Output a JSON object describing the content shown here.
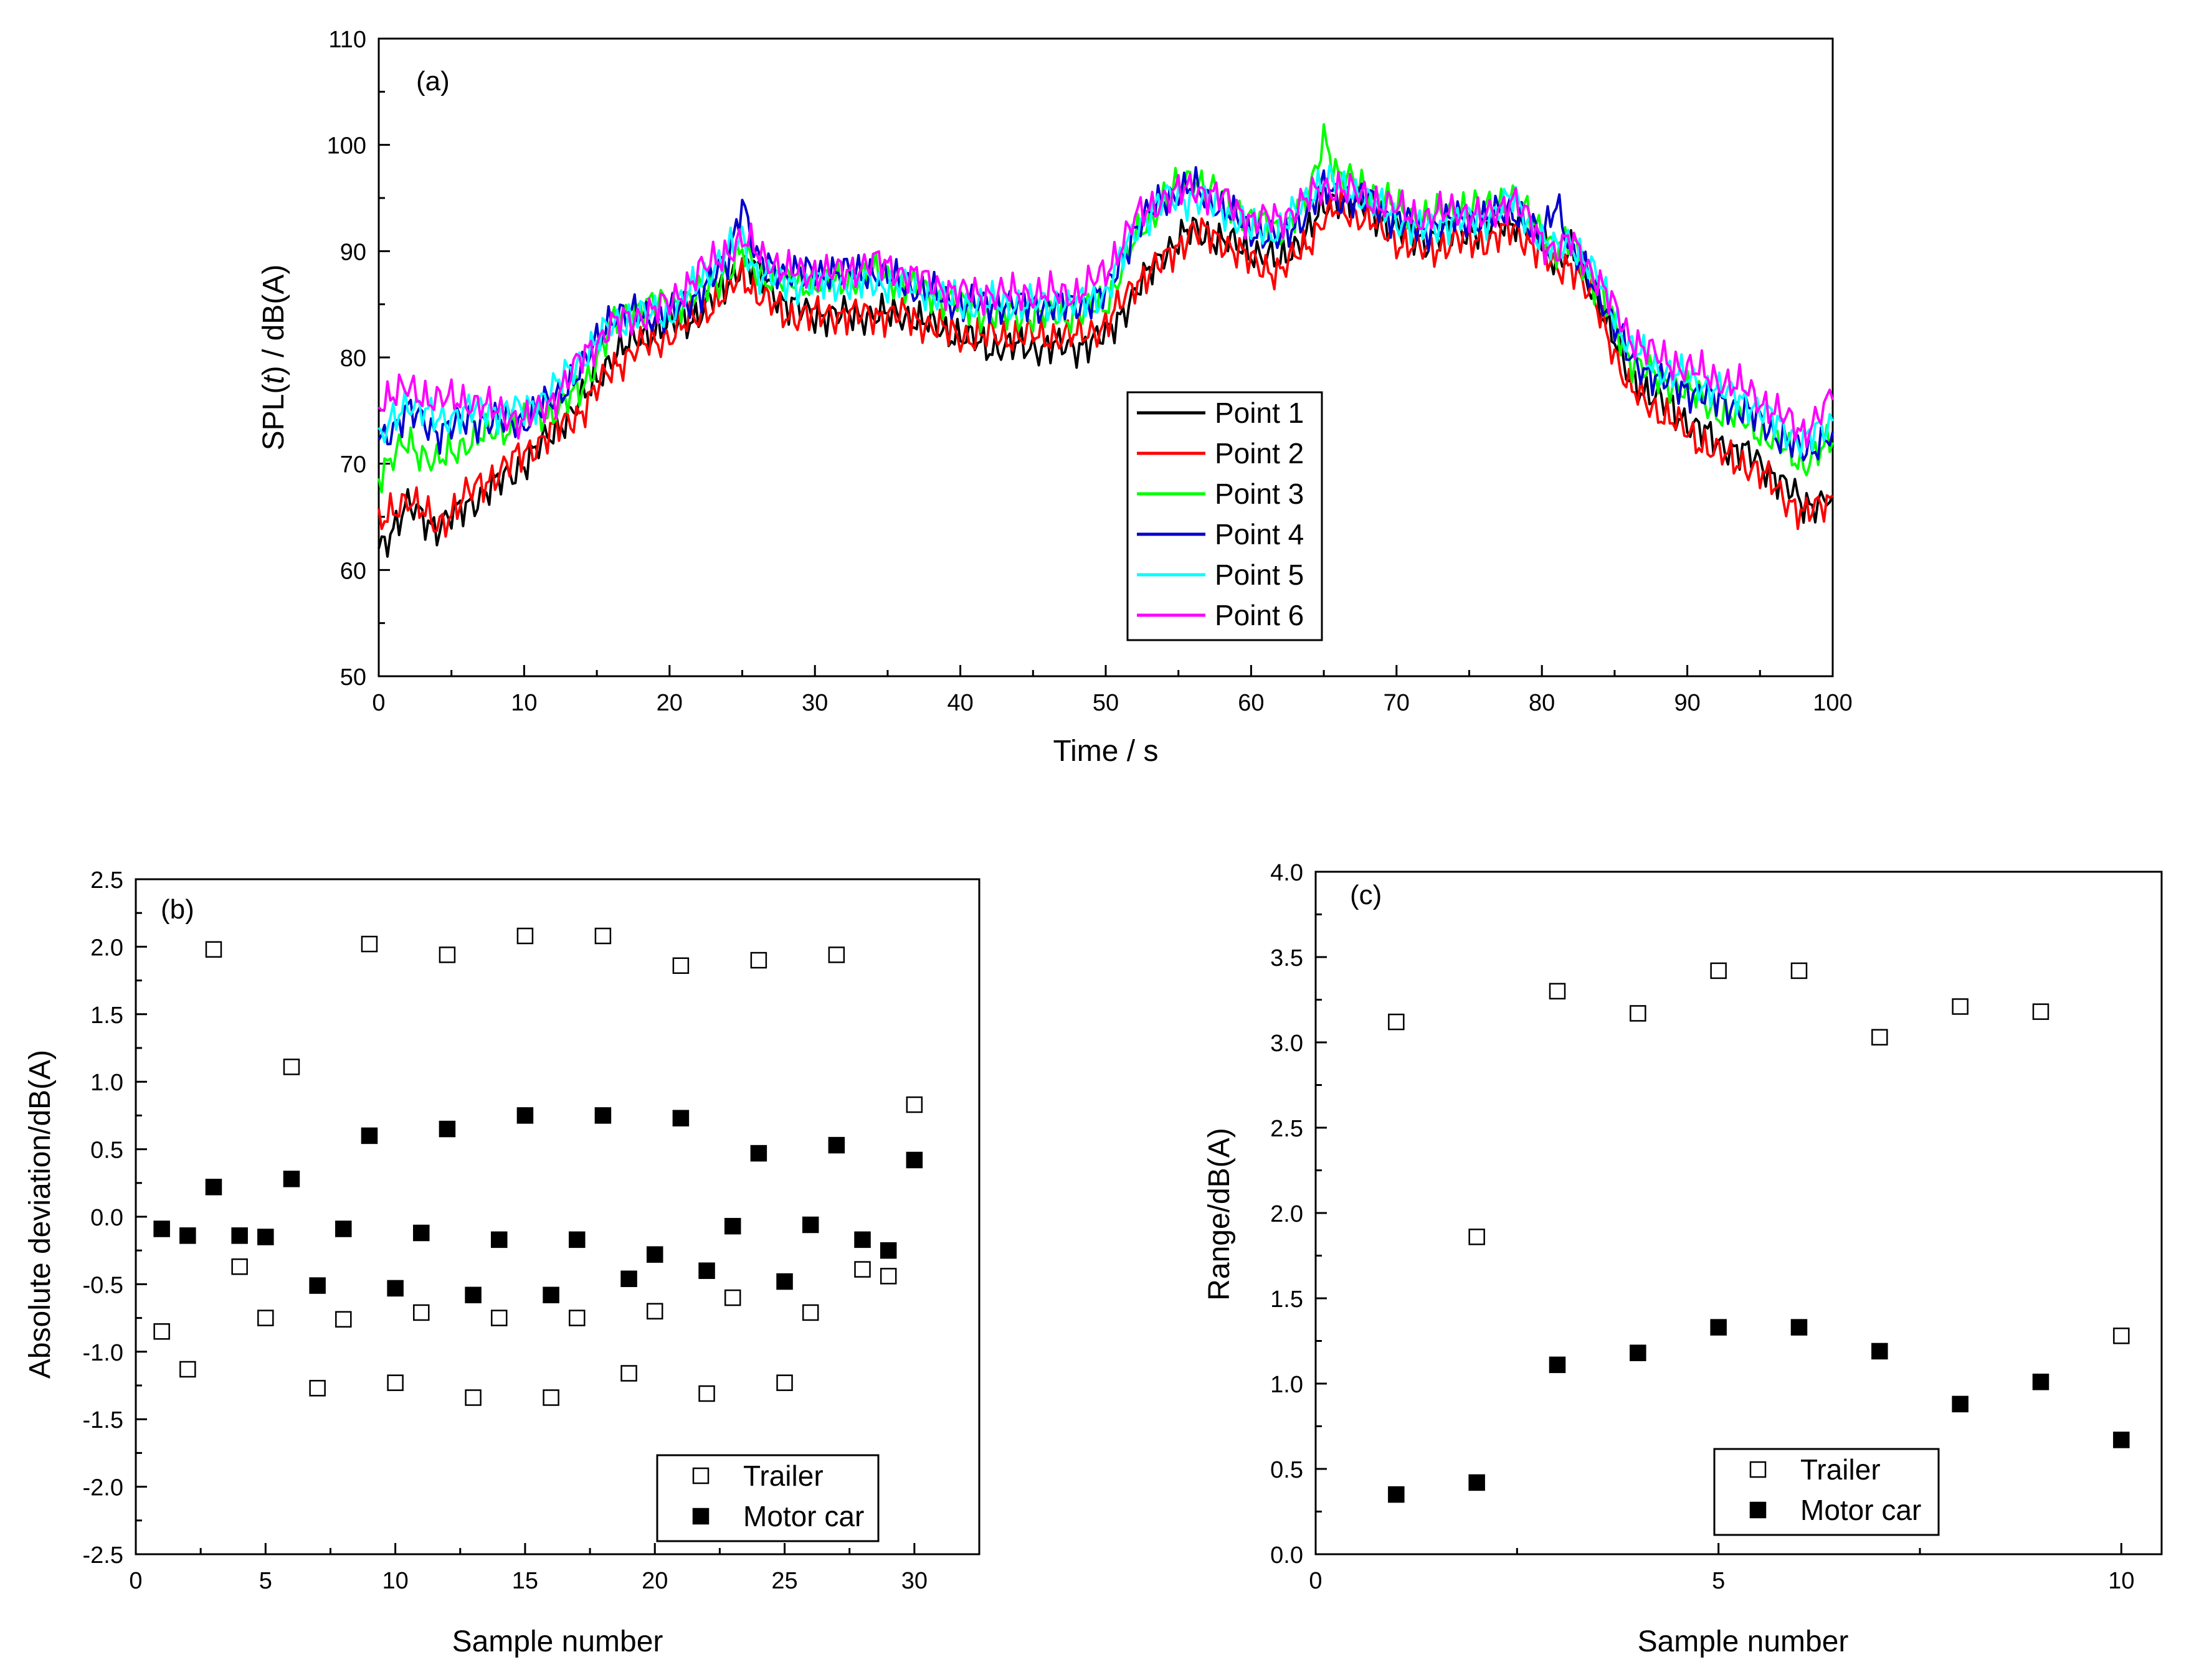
{
  "chart_data": [
    {
      "id": "a",
      "type": "line",
      "panel_label": "(a)",
      "xlabel": "Time / s",
      "ylabel": "SPL(t) / dB(A)",
      "xlim": [
        0,
        100
      ],
      "ylim": [
        50,
        110
      ],
      "xticks": [
        0,
        10,
        20,
        30,
        40,
        50,
        60,
        70,
        80,
        90,
        100
      ],
      "yticks": [
        50,
        60,
        70,
        80,
        90,
        100,
        110
      ],
      "legend_position": "center",
      "x": [
        0,
        2,
        4,
        6,
        8,
        10,
        12,
        14,
        16,
        18,
        20,
        22,
        24,
        25,
        26,
        28,
        30,
        32,
        34,
        36,
        38,
        40,
        42,
        44,
        46,
        48,
        50,
        52,
        54,
        56,
        58,
        60,
        62,
        64,
        65,
        66,
        68,
        70,
        72,
        74,
        76,
        78,
        80,
        81,
        82,
        84,
        86,
        88,
        90,
        92,
        94,
        96,
        98,
        100
      ],
      "series": [
        {
          "name": "Point 1",
          "color": "#000000",
          "values": [
            62,
            66,
            64,
            66,
            68,
            70,
            73,
            76,
            80,
            82,
            83,
            84,
            87,
            89,
            88,
            85,
            84,
            84,
            84,
            84,
            83,
            82,
            81,
            81,
            81,
            81,
            82,
            86,
            90,
            92,
            91,
            90,
            89,
            92,
            94,
            95,
            94,
            92,
            91,
            92,
            92,
            93,
            91,
            89,
            90,
            85,
            78,
            76,
            74,
            72,
            71,
            69,
            66,
            67
          ]
        },
        {
          "name": "Point 2",
          "color": "#ff0000",
          "values": [
            64,
            67,
            64,
            67,
            69,
            71,
            73,
            75,
            79,
            81,
            82,
            84,
            86,
            88,
            86,
            84,
            84,
            84,
            84,
            84,
            83,
            82,
            82,
            82,
            82,
            82,
            83,
            87,
            89,
            92,
            91,
            89,
            88,
            91,
            93,
            94,
            93,
            91,
            90,
            91,
            91,
            92,
            90,
            88,
            89,
            84,
            77,
            75,
            73,
            71,
            70,
            68,
            65,
            67
          ]
        },
        {
          "name": "Point 3",
          "color": "#00ff00",
          "values": [
            69,
            72,
            70,
            72,
            73,
            74,
            75,
            77,
            83,
            85,
            85,
            86,
            88,
            90,
            88,
            87,
            87,
            87,
            88,
            87,
            86,
            85,
            84,
            84,
            84,
            84,
            85,
            91,
            95,
            97,
            95,
            93,
            92,
            95,
            101,
            97,
            96,
            94,
            93,
            94,
            94,
            95,
            92,
            90,
            91,
            86,
            80,
            78,
            77,
            75,
            74,
            72,
            70,
            72
          ]
        },
        {
          "name": "Point 4",
          "color": "#0000cc",
          "values": [
            72,
            75,
            73,
            74,
            74,
            74,
            76,
            79,
            84,
            84,
            84,
            86,
            89,
            95,
            89,
            88,
            88,
            88,
            88,
            87,
            86,
            85,
            85,
            85,
            85,
            85,
            86,
            92,
            95,
            96,
            94,
            92,
            91,
            94,
            96,
            95,
            95,
            93,
            92,
            93,
            93,
            94,
            91,
            95,
            90,
            86,
            80,
            78,
            77,
            76,
            75,
            73,
            71,
            73
          ]
        },
        {
          "name": "Point 5",
          "color": "#00ffff",
          "values": [
            72,
            76,
            74,
            75,
            75,
            75,
            77,
            80,
            83,
            84,
            84,
            87,
            90,
            91,
            88,
            87,
            87,
            87,
            87,
            87,
            86,
            85,
            85,
            85,
            85,
            85,
            86,
            92,
            95,
            95,
            94,
            92,
            92,
            95,
            97,
            96,
            95,
            93,
            92,
            93,
            93,
            95,
            91,
            90,
            91,
            87,
            81,
            79,
            78,
            77,
            76,
            74,
            72,
            74
          ]
        },
        {
          "name": "Point 6",
          "color": "#ff00ff",
          "values": [
            76,
            77,
            76,
            76,
            75,
            74,
            76,
            80,
            83,
            84,
            85,
            88,
            90,
            91,
            90,
            88,
            88,
            88,
            89,
            88,
            87,
            86,
            86,
            86,
            86,
            86,
            88,
            93,
            95,
            96,
            95,
            93,
            93,
            95,
            96,
            96,
            95,
            94,
            93,
            94,
            93,
            95,
            91,
            90,
            91,
            87,
            82,
            80,
            79,
            78,
            77,
            75,
            73,
            76
          ]
        }
      ]
    },
    {
      "id": "b",
      "type": "scatter",
      "panel_label": "(b)",
      "xlabel": "Sample number",
      "ylabel": "Absolute deviation/dB(A)",
      "xlim": [
        0,
        32.5
      ],
      "ylim": [
        -2.5,
        2.5
      ],
      "xticks": [
        0,
        5,
        10,
        15,
        20,
        25,
        30
      ],
      "yticks": [
        -2.5,
        -2.0,
        -1.5,
        -1.0,
        -0.5,
        0.0,
        0.5,
        1.0,
        1.5,
        2.0,
        2.5
      ],
      "ytick_labels": [
        "-2.5",
        "-2.0",
        "-1.5",
        "-1.0",
        "-0.5",
        "0.0",
        "0.5",
        "1.0",
        "1.5",
        "2.0",
        "2.5"
      ],
      "legend_position": "bottom-right",
      "series": [
        {
          "name": "Trailer",
          "marker": "open-square",
          "points": [
            [
              1,
              -0.85
            ],
            [
              2,
              -1.13
            ],
            [
              3,
              1.98
            ],
            [
              4,
              -0.37
            ],
            [
              5,
              -0.75
            ],
            [
              6,
              1.11
            ],
            [
              7,
              -1.27
            ],
            [
              8,
              -0.76
            ],
            [
              9,
              2.02
            ],
            [
              10,
              -1.23
            ],
            [
              11,
              -0.71
            ],
            [
              12,
              1.94
            ],
            [
              13,
              -1.34
            ],
            [
              14,
              -0.75
            ],
            [
              15,
              2.08
            ],
            [
              16,
              -1.34
            ],
            [
              17,
              -0.75
            ],
            [
              18,
              2.08
            ],
            [
              19,
              -1.16
            ],
            [
              20,
              -0.7
            ],
            [
              21,
              1.86
            ],
            [
              22,
              -1.31
            ],
            [
              23,
              -0.6
            ],
            [
              24,
              1.9
            ],
            [
              25,
              -1.23
            ],
            [
              26,
              -0.71
            ],
            [
              27,
              1.94
            ],
            [
              28,
              -0.39
            ],
            [
              29,
              -0.44
            ],
            [
              30,
              0.83
            ]
          ]
        },
        {
          "name": "Motor car",
          "marker": "filled-square",
          "points": [
            [
              1,
              -0.09
            ],
            [
              2,
              -0.14
            ],
            [
              3,
              0.22
            ],
            [
              4,
              -0.14
            ],
            [
              5,
              -0.15
            ],
            [
              6,
              0.28
            ],
            [
              7,
              -0.51
            ],
            [
              8,
              -0.09
            ],
            [
              9,
              0.6
            ],
            [
              10,
              -0.53
            ],
            [
              11,
              -0.12
            ],
            [
              12,
              0.65
            ],
            [
              13,
              -0.58
            ],
            [
              14,
              -0.17
            ],
            [
              15,
              0.75
            ],
            [
              16,
              -0.58
            ],
            [
              17,
              -0.17
            ],
            [
              18,
              0.75
            ],
            [
              19,
              -0.46
            ],
            [
              20,
              -0.28
            ],
            [
              21,
              0.73
            ],
            [
              22,
              -0.4
            ],
            [
              23,
              -0.07
            ],
            [
              24,
              0.47
            ],
            [
              25,
              -0.48
            ],
            [
              26,
              -0.06
            ],
            [
              27,
              0.53
            ],
            [
              28,
              -0.17
            ],
            [
              29,
              -0.25
            ],
            [
              30,
              0.42
            ]
          ]
        }
      ]
    },
    {
      "id": "c",
      "type": "scatter",
      "panel_label": "(c)",
      "xlabel": "Sample number",
      "ylabel": "Range/dB(A)",
      "xlim": [
        0,
        10.5
      ],
      "ylim": [
        0,
        4.0
      ],
      "xticks": [
        0,
        5,
        10
      ],
      "yticks": [
        0,
        0.5,
        1.0,
        1.5,
        2.0,
        2.5,
        3.0,
        3.5,
        4.0
      ],
      "ytick_labels": [
        "0.0",
        "0.5",
        "1.0",
        "1.5",
        "2.0",
        "2.5",
        "3.0",
        "3.5",
        "4.0"
      ],
      "legend_position": "bottom-right",
      "series": [
        {
          "name": "Trailer",
          "marker": "open-square",
          "points": [
            [
              1,
              3.12
            ],
            [
              2,
              1.86
            ],
            [
              3,
              3.3
            ],
            [
              4,
              3.17
            ],
            [
              5,
              3.42
            ],
            [
              6,
              3.42
            ],
            [
              7,
              3.03
            ],
            [
              8,
              3.21
            ],
            [
              9,
              3.18
            ],
            [
              10,
              1.28
            ]
          ]
        },
        {
          "name": "Motor car",
          "marker": "filled-square",
          "points": [
            [
              1,
              0.35
            ],
            [
              2,
              0.42
            ],
            [
              3,
              1.11
            ],
            [
              4,
              1.18
            ],
            [
              5,
              1.33
            ],
            [
              6,
              1.33
            ],
            [
              7,
              1.19
            ],
            [
              8,
              0.88
            ],
            [
              9,
              1.01
            ],
            [
              10,
              0.67
            ]
          ]
        }
      ]
    }
  ]
}
